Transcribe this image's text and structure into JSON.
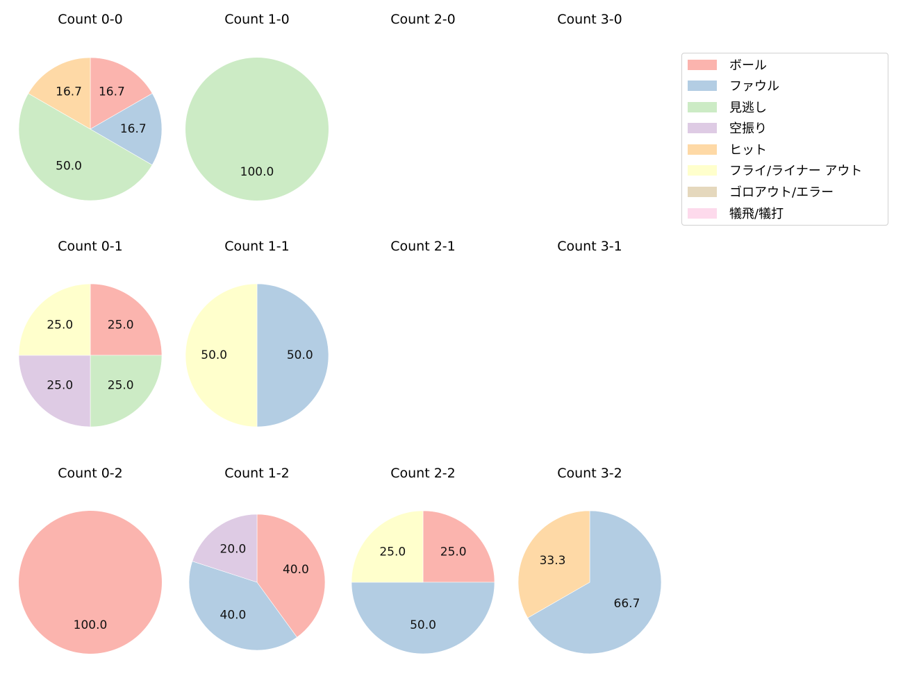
{
  "chart_data": {
    "type": "pie",
    "title": "",
    "start_angle": 90,
    "direction": "clockwise",
    "legend": {
      "position": "upper right",
      "entries": [
        {
          "label": "ボール",
          "color": "#fbb4ae"
        },
        {
          "label": "ファウル",
          "color": "#b3cde3"
        },
        {
          "label": "見逃し",
          "color": "#ccebc5"
        },
        {
          "label": "空振り",
          "color": "#decbe4"
        },
        {
          "label": "ヒット",
          "color": "#fed9a6"
        },
        {
          "label": "フライ/ライナー アウト",
          "color": "#ffffcc"
        },
        {
          "label": "ゴロアウト/エラー",
          "color": "#e5d8bd"
        },
        {
          "label": "犠飛/犠打",
          "color": "#fddaec"
        }
      ]
    },
    "subplots": [
      {
        "title": "Count 0-0",
        "row": 0,
        "col": 0,
        "radius": 103,
        "slices": [
          {
            "label": "ボール",
            "value": 16.7
          },
          {
            "label": "ファウル",
            "value": 16.7
          },
          {
            "label": "見逃し",
            "value": 50.0
          },
          {
            "label": "ヒット",
            "value": 16.7
          }
        ]
      },
      {
        "title": "Count 1-0",
        "row": 0,
        "col": 1,
        "radius": 103,
        "slices": [
          {
            "label": "見逃し",
            "value": 100.0
          }
        ]
      },
      {
        "title": "Count 2-0",
        "row": 0,
        "col": 2,
        "slices": []
      },
      {
        "title": "Count 3-0",
        "row": 0,
        "col": 3,
        "slices": []
      },
      {
        "title": "Count 0-1",
        "row": 1,
        "col": 0,
        "radius": 103,
        "slices": [
          {
            "label": "ボール",
            "value": 25.0
          },
          {
            "label": "見逃し",
            "value": 25.0
          },
          {
            "label": "空振り",
            "value": 25.0
          },
          {
            "label": "フライ/ライナー アウト",
            "value": 25.0
          }
        ]
      },
      {
        "title": "Count 1-1",
        "row": 1,
        "col": 1,
        "radius": 103,
        "slices": [
          {
            "label": "ファウル",
            "value": 50.0
          },
          {
            "label": "フライ/ライナー アウト",
            "value": 50.0
          }
        ]
      },
      {
        "title": "Count 2-1",
        "row": 1,
        "col": 2,
        "slices": []
      },
      {
        "title": "Count 3-1",
        "row": 1,
        "col": 3,
        "slices": []
      },
      {
        "title": "Count 0-2",
        "row": 2,
        "col": 0,
        "radius": 103,
        "slices": [
          {
            "label": "ボール",
            "value": 100.0
          }
        ]
      },
      {
        "title": "Count 1-2",
        "row": 2,
        "col": 1,
        "radius": 98,
        "slices": [
          {
            "label": "ボール",
            "value": 40.0
          },
          {
            "label": "ファウル",
            "value": 40.0
          },
          {
            "label": "空振り",
            "value": 20.0
          }
        ]
      },
      {
        "title": "Count 2-2",
        "row": 2,
        "col": 2,
        "radius": 103,
        "slices": [
          {
            "label": "ボール",
            "value": 25.0
          },
          {
            "label": "ファウル",
            "value": 50.0
          },
          {
            "label": "フライ/ライナー アウト",
            "value": 25.0
          }
        ]
      },
      {
        "title": "Count 3-2",
        "row": 2,
        "col": 3,
        "radius": 103,
        "slices": [
          {
            "label": "ファウル",
            "value": 66.7
          },
          {
            "label": "ヒット",
            "value": 33.3
          }
        ]
      }
    ]
  }
}
